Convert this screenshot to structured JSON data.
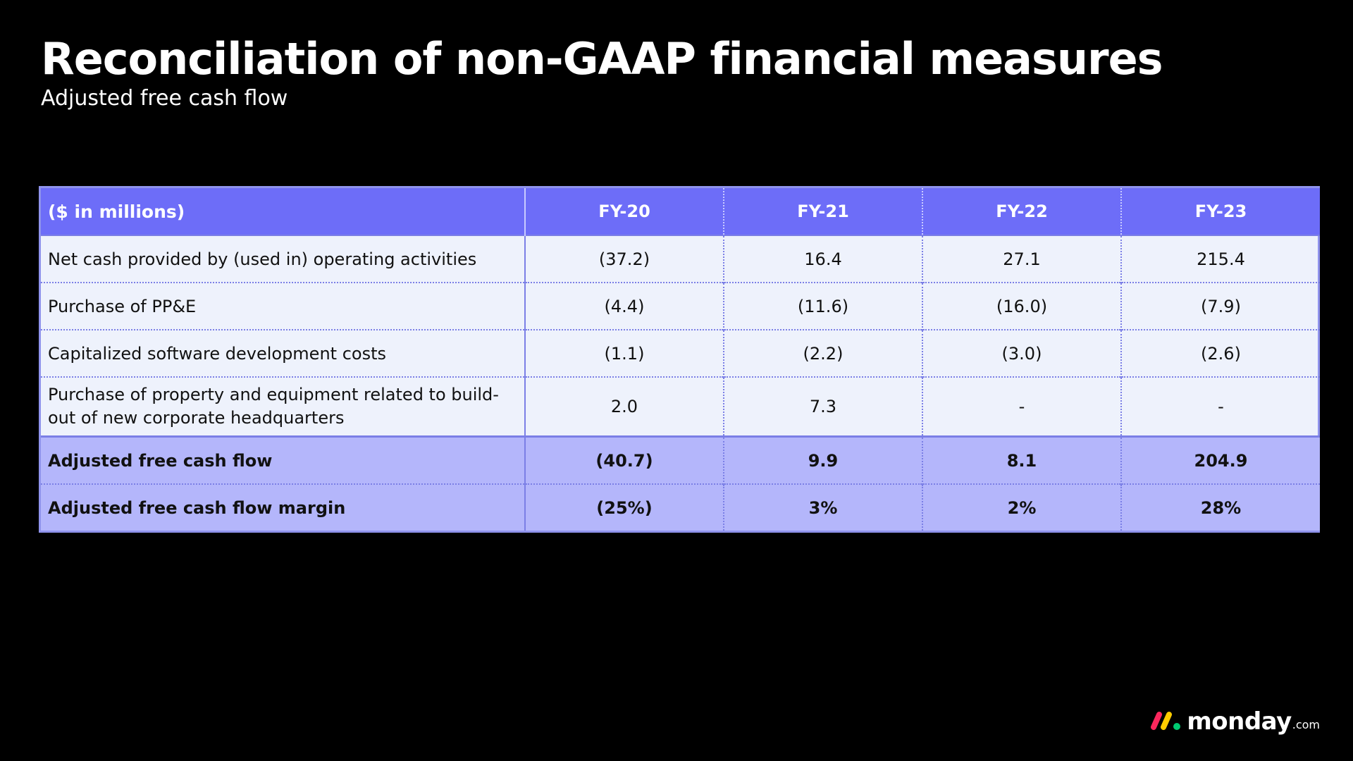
{
  "title": "Reconciliation of non-GAAP financial measures",
  "subtitle": "Adjusted free cash flow",
  "table": {
    "header": {
      "label": "($ in millions)",
      "years": [
        "FY-20",
        "FY-21",
        "FY-22",
        "FY-23"
      ]
    },
    "rows": [
      {
        "label": "Net cash provided by (used in) operating activities",
        "values": [
          "(37.2)",
          "16.4",
          "27.1",
          "215.4"
        ]
      },
      {
        "label": "Purchase of PP&E",
        "values": [
          "(4.4)",
          "(11.6)",
          "(16.0)",
          "(7.9)"
        ]
      },
      {
        "label": "Capitalized software development costs",
        "values": [
          "(1.1)",
          "(2.2)",
          "(3.0)",
          "(2.6)"
        ]
      },
      {
        "label": "Purchase of property and equipment related to build-out of new corporate headquarters",
        "values": [
          "2.0",
          "7.3",
          "-",
          "-"
        ]
      }
    ],
    "totals": [
      {
        "label": "Adjusted free cash flow",
        "values": [
          "(40.7)",
          "9.9",
          "8.1",
          "204.9"
        ]
      },
      {
        "label": "Adjusted free cash flow margin",
        "values": [
          "(25%)",
          "3%",
          "2%",
          "28%"
        ]
      }
    ]
  },
  "logo": {
    "word": "monday",
    "suffix": ".com",
    "colors": [
      "#fb275d",
      "#ffcc00",
      "#00ca72"
    ]
  },
  "colors": {
    "background": "#000000",
    "header_fill": "#6d6df8",
    "body_fill": "#eef2fc",
    "total_fill": "#b4b6fb",
    "border": "#8f93ec"
  }
}
